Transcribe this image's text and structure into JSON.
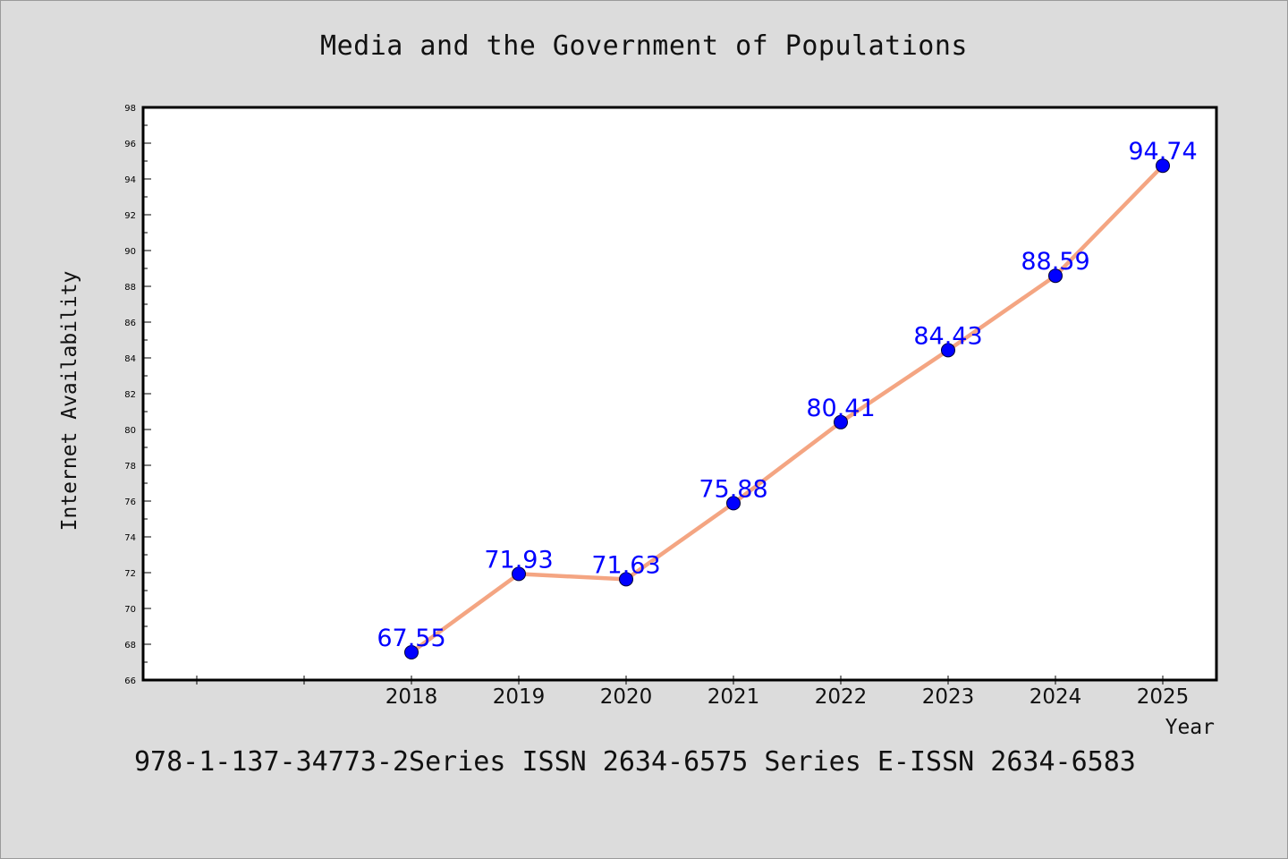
{
  "title": "Media and the Government of Populations",
  "footer": "978-1-137-34773-2Series ISSN 2634-6575 Series E-ISSN 2634-6583",
  "colors": {
    "background": "#dcdcdc",
    "plot_background": "#ffffff",
    "line": "#f4a582",
    "marker": "#0000ff",
    "label": "#0000ff"
  },
  "chart_data": {
    "type": "line",
    "title": "Media and the Government of Populations",
    "xlabel": "Year",
    "ylabel": "Internet Availability",
    "x": [
      "2018",
      "2019",
      "2020",
      "2021",
      "2022",
      "2023",
      "2024",
      "2025"
    ],
    "series": [
      {
        "values": [
          67.55,
          71.93,
          71.63,
          75.88,
          80.41,
          84.43,
          88.59,
          94.74
        ],
        "labels": [
          "67.55",
          "71.93",
          "71.63",
          "75.88",
          "80.41",
          "84.43",
          "88.59",
          "94.74"
        ]
      }
    ],
    "ylim": [
      66,
      98
    ],
    "yticks": [
      "66",
      "68",
      "70",
      "72",
      "74",
      "76",
      "78",
      "80",
      "82",
      "84",
      "86",
      "88",
      "90",
      "92",
      "94",
      "96",
      "98"
    ],
    "grid": false,
    "legend": "none"
  }
}
